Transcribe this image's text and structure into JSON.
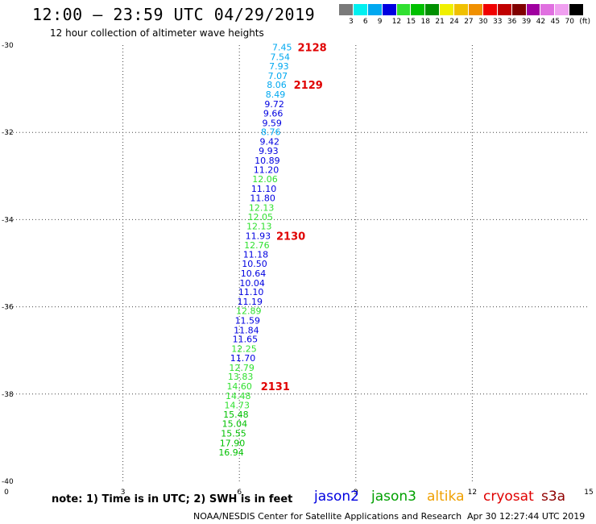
{
  "header": {
    "title": "12:00 – 23:59 UTC 04/29/2019",
    "subtitle": "12 hour collection of altimeter wave heights"
  },
  "colorbar": {
    "colors": [
      "#7a7a7a",
      "#00f0f0",
      "#00a8f0",
      "#0000e0",
      "#30e030",
      "#00c000",
      "#009000",
      "#f0f000",
      "#f0c000",
      "#f09000",
      "#f00000",
      "#c00000",
      "#800000",
      "#a000a0",
      "#e070e0",
      "#f0a0f0",
      "#000000"
    ],
    "labels": [
      "3",
      "6",
      "9",
      "12",
      "15",
      "18",
      "21",
      "24",
      "27",
      "30",
      "33",
      "36",
      "39",
      "42",
      "45",
      "70",
      "(ft)"
    ]
  },
  "chart_data": {
    "type": "scatter",
    "title": "12:00 – 23:59 UTC 04/29/2019",
    "subtitle": "12 hour collection of altimeter wave heights",
    "xlim": [
      0,
      15
    ],
    "ylim": [
      -40,
      -30
    ],
    "xticks": [
      "0",
      "3",
      "6",
      "9",
      "12",
      "15"
    ],
    "yticks": [
      "-30",
      "-32",
      "-34",
      "-36",
      "-38",
      "-40"
    ],
    "x_tick_values": [
      0,
      3,
      6,
      9,
      12,
      15
    ],
    "y_tick_values": [
      -30,
      -32,
      -34,
      -36,
      -38,
      -40
    ],
    "grid": true,
    "points": [
      {
        "x": 7.1,
        "y": -30.05,
        "label": "7.45",
        "color": "#00a8f0"
      },
      {
        "x": 7.05,
        "y": -30.27,
        "label": "7.54",
        "color": "#00a8f0"
      },
      {
        "x": 7.02,
        "y": -30.48,
        "label": "7.93",
        "color": "#00a8f0"
      },
      {
        "x": 6.99,
        "y": -30.7,
        "label": "7.07",
        "color": "#00a8f0"
      },
      {
        "x": 6.96,
        "y": -30.91,
        "label": "8.06",
        "color": "#00a8f0"
      },
      {
        "x": 6.93,
        "y": -31.13,
        "label": "8.49",
        "color": "#00a8f0"
      },
      {
        "x": 6.9,
        "y": -31.35,
        "label": "9.72",
        "color": "#0000e0"
      },
      {
        "x": 6.87,
        "y": -31.56,
        "label": "9.66",
        "color": "#0000e0"
      },
      {
        "x": 6.84,
        "y": -31.78,
        "label": "9.59",
        "color": "#0000e0"
      },
      {
        "x": 6.81,
        "y": -31.99,
        "label": "8.76",
        "color": "#00a8f0"
      },
      {
        "x": 6.78,
        "y": -32.21,
        "label": "9.42",
        "color": "#0000e0"
      },
      {
        "x": 6.75,
        "y": -32.42,
        "label": "9.93",
        "color": "#0000e0"
      },
      {
        "x": 6.72,
        "y": -32.64,
        "label": "10.89",
        "color": "#0000e0"
      },
      {
        "x": 6.69,
        "y": -32.86,
        "label": "11.20",
        "color": "#0000e0"
      },
      {
        "x": 6.66,
        "y": -33.07,
        "label": "12.06",
        "color": "#30e030"
      },
      {
        "x": 6.63,
        "y": -33.29,
        "label": "11.10",
        "color": "#0000e0"
      },
      {
        "x": 6.6,
        "y": -33.5,
        "label": "11.80",
        "color": "#0000e0"
      },
      {
        "x": 6.57,
        "y": -33.72,
        "label": "12.13",
        "color": "#30e030"
      },
      {
        "x": 6.54,
        "y": -33.94,
        "label": "12.05",
        "color": "#30e030"
      },
      {
        "x": 6.51,
        "y": -34.15,
        "label": "12.13",
        "color": "#30e030"
      },
      {
        "x": 6.48,
        "y": -34.37,
        "label": "11.93",
        "color": "#0000e0"
      },
      {
        "x": 6.45,
        "y": -34.58,
        "label": "12.76",
        "color": "#30e030"
      },
      {
        "x": 6.42,
        "y": -34.8,
        "label": "11.18",
        "color": "#0000e0"
      },
      {
        "x": 6.39,
        "y": -35.01,
        "label": "10.50",
        "color": "#0000e0"
      },
      {
        "x": 6.36,
        "y": -35.23,
        "label": "10.64",
        "color": "#0000e0"
      },
      {
        "x": 6.33,
        "y": -35.45,
        "label": "10.04",
        "color": "#0000e0"
      },
      {
        "x": 6.3,
        "y": -35.66,
        "label": "11.10",
        "color": "#0000e0"
      },
      {
        "x": 6.27,
        "y": -35.88,
        "label": "11.19",
        "color": "#0000e0"
      },
      {
        "x": 6.24,
        "y": -36.09,
        "label": "12.89",
        "color": "#30e030"
      },
      {
        "x": 6.21,
        "y": -36.31,
        "label": "11.59",
        "color": "#0000e0"
      },
      {
        "x": 6.18,
        "y": -36.53,
        "label": "11.84",
        "color": "#0000e0"
      },
      {
        "x": 6.15,
        "y": -36.74,
        "label": "11.65",
        "color": "#0000e0"
      },
      {
        "x": 6.12,
        "y": -36.96,
        "label": "12.25",
        "color": "#30e030"
      },
      {
        "x": 6.09,
        "y": -37.17,
        "label": "11.70",
        "color": "#0000e0"
      },
      {
        "x": 6.06,
        "y": -37.39,
        "label": "12.79",
        "color": "#30e030"
      },
      {
        "x": 6.03,
        "y": -37.6,
        "label": "13.83",
        "color": "#30e030"
      },
      {
        "x": 6.0,
        "y": -37.82,
        "label": "14.60",
        "color": "#30e030"
      },
      {
        "x": 5.97,
        "y": -38.04,
        "label": "14.48",
        "color": "#30e030"
      },
      {
        "x": 5.94,
        "y": -38.25,
        "label": "14.73",
        "color": "#30e030"
      },
      {
        "x": 5.91,
        "y": -38.47,
        "label": "15.48",
        "color": "#00c000"
      },
      {
        "x": 5.88,
        "y": -38.68,
        "label": "15.04",
        "color": "#00c000"
      },
      {
        "x": 5.85,
        "y": -38.9,
        "label": "15.55",
        "color": "#00c000"
      },
      {
        "x": 5.82,
        "y": -39.12,
        "label": "17.90",
        "color": "#00c000"
      },
      {
        "x": 5.79,
        "y": -39.33,
        "label": "16.94",
        "color": "#00c000"
      }
    ],
    "pass_labels": [
      {
        "x": 7.5,
        "y": -30.05,
        "label": "2128"
      },
      {
        "x": 7.4,
        "y": -30.91,
        "label": "2129"
      },
      {
        "x": 6.95,
        "y": -34.37,
        "label": "2130"
      },
      {
        "x": 6.55,
        "y": -37.82,
        "label": "2131"
      }
    ],
    "legend": [
      {
        "name": "jason2",
        "color": "#0000e0"
      },
      {
        "name": "jason3",
        "color": "#00a000"
      },
      {
        "name": "altika",
        "color": "#f0a000"
      },
      {
        "name": "cryosat",
        "color": "#e00000"
      },
      {
        "name": "s3a",
        "color": "#900000"
      }
    ],
    "legend_placement": "bottom-right"
  },
  "footer": {
    "note": "note: 1) Time is in UTC; 2) SWH is in feet",
    "credit": "NOAA/NESDIS Center for Satellite Applications and Research",
    "timestamp": "Apr 30 12:27:44 UTC 2019"
  }
}
